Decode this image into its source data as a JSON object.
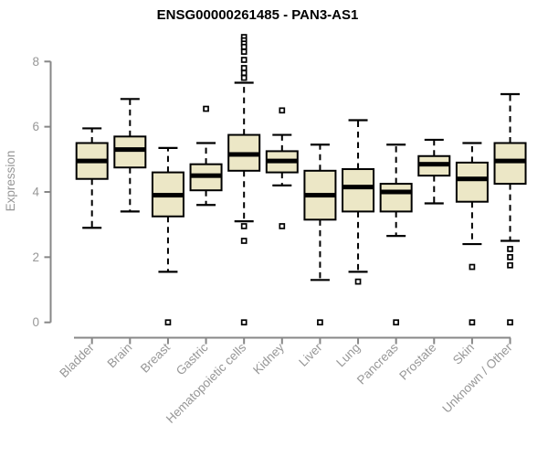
{
  "chart_data": {
    "type": "boxplot",
    "title": "ENSG00000261485 - PAN3-AS1",
    "ylabel": "Expression",
    "xlabel": "",
    "ylim": [
      0,
      8
    ],
    "yticks": [
      0,
      2,
      4,
      6,
      8
    ],
    "grid": false,
    "legend": "none",
    "categories": [
      "Bladder",
      "Brain",
      "Breast",
      "Gastric",
      "Hematopoietic cells",
      "Kidney",
      "Liver",
      "Lung",
      "Pancreas",
      "Prostate",
      "Skin",
      "Unknown / Other"
    ],
    "boxes": [
      {
        "category": "Bladder",
        "whisker_low": 2.9,
        "q1": 4.4,
        "median": 4.95,
        "q3": 5.5,
        "whisker_high": 5.95,
        "outliers": []
      },
      {
        "category": "Brain",
        "whisker_low": 3.4,
        "q1": 4.75,
        "median": 5.3,
        "q3": 5.7,
        "whisker_high": 6.85,
        "outliers": []
      },
      {
        "category": "Breast",
        "whisker_low": 1.55,
        "q1": 3.25,
        "median": 3.9,
        "q3": 4.6,
        "whisker_high": 5.35,
        "outliers": [
          0
        ]
      },
      {
        "category": "Gastric",
        "whisker_low": 3.6,
        "q1": 4.05,
        "median": 4.5,
        "q3": 4.85,
        "whisker_high": 5.5,
        "outliers": [
          6.55
        ]
      },
      {
        "category": "Hematopoietic cells",
        "whisker_low": 3.1,
        "q1": 4.65,
        "median": 5.15,
        "q3": 5.75,
        "whisker_high": 7.35,
        "outliers": [
          8.75,
          8.65,
          8.55,
          8.45,
          8.3,
          8.05,
          7.8,
          7.65,
          7.5,
          2.95,
          2.5,
          0
        ]
      },
      {
        "category": "Kidney",
        "whisker_low": 4.2,
        "q1": 4.6,
        "median": 4.95,
        "q3": 5.25,
        "whisker_high": 5.75,
        "outliers": [
          6.5,
          2.95
        ]
      },
      {
        "category": "Liver",
        "whisker_low": 1.3,
        "q1": 3.15,
        "median": 3.9,
        "q3": 4.65,
        "whisker_high": 5.45,
        "outliers": [
          0
        ]
      },
      {
        "category": "Lung",
        "whisker_low": 1.55,
        "q1": 3.4,
        "median": 4.15,
        "q3": 4.7,
        "whisker_high": 6.2,
        "outliers": [
          1.25
        ]
      },
      {
        "category": "Pancreas",
        "whisker_low": 2.65,
        "q1": 3.4,
        "median": 4.0,
        "q3": 4.25,
        "whisker_high": 5.45,
        "outliers": [
          0
        ]
      },
      {
        "category": "Prostate",
        "whisker_low": 3.65,
        "q1": 4.5,
        "median": 4.85,
        "q3": 5.1,
        "whisker_high": 5.6,
        "outliers": []
      },
      {
        "category": "Skin",
        "whisker_low": 2.4,
        "q1": 3.7,
        "median": 4.4,
        "q3": 4.9,
        "whisker_high": 5.5,
        "outliers": [
          1.7,
          0
        ]
      },
      {
        "category": "Unknown / Other",
        "whisker_low": 2.5,
        "q1": 4.25,
        "median": 4.95,
        "q3": 5.5,
        "whisker_high": 7.0,
        "outliers": [
          2.25,
          2.0,
          1.75,
          0
        ]
      }
    ],
    "style": {
      "background": "#ffffff",
      "box_fill": "#ece7c6",
      "box_border": "#000000",
      "median_color": "#000000",
      "whisker_color": "#000000",
      "outlier_fill": "#ffffff",
      "axis_color": "#878787",
      "label_color": "#979797",
      "title_color": "#000000"
    }
  }
}
